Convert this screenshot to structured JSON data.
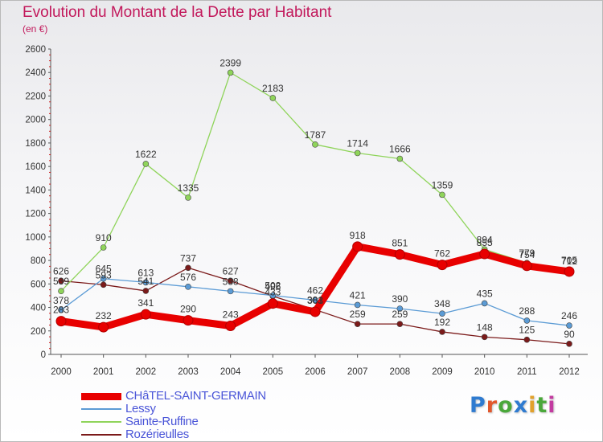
{
  "header": {
    "title": "Evolution du Montant de la Dette par Habitant",
    "subtitle": "(en €)"
  },
  "brand": {
    "text": "Proxiti",
    "colors": [
      "#2f7bd0",
      "#e2572b",
      "#4aa83a",
      "#2f7bd0",
      "#e2a12b",
      "#4aa83a",
      "#c33ba0"
    ]
  },
  "chart_data": {
    "type": "line",
    "title": "Evolution du Montant de la Dette par Habitant",
    "subtitle": "(en €)",
    "x": [
      "2000",
      "2001",
      "2002",
      "2003",
      "2004",
      "2005",
      "2006",
      "2007",
      "2008",
      "2009",
      "2010",
      "2011",
      "2012"
    ],
    "ylim": [
      0,
      2600
    ],
    "yticks": [
      0,
      200,
      400,
      600,
      800,
      1000,
      1200,
      1400,
      1600,
      1800,
      2000,
      2200,
      2400,
      2600
    ],
    "grid": false,
    "legend_position": "bottom-left",
    "series": [
      {
        "name": "CHâTEL-SAINT-GERMAIN",
        "color": "#e80000",
        "values": [
          283,
          232,
          341,
          290,
          243,
          433,
          363,
          918,
          851,
          762,
          855,
          754,
          705
        ],
        "labels": [
          "283",
          "232",
          "341",
          "290",
          "243",
          "433",
          "363",
          "918",
          "851",
          "762",
          "855",
          "754",
          "705"
        ]
      },
      {
        "name": "Lessy",
        "color": "#5b9bd5",
        "values": [
          378,
          645,
          613,
          576,
          538,
          502,
          462,
          421,
          390,
          348,
          435,
          288,
          246
        ],
        "labels": [
          "378",
          "645",
          "613",
          "576",
          "538",
          "502",
          "462",
          "421",
          "390",
          "348",
          "435",
          "288",
          "246"
        ]
      },
      {
        "name": "Sainte-Ruffine",
        "color": "#8fd45a",
        "values": [
          539,
          910,
          1622,
          1335,
          2399,
          2183,
          1787,
          1714,
          1666,
          1359,
          894,
          779,
          712
        ],
        "labels": [
          "539",
          "910",
          "1622",
          "1335",
          "2399",
          "2183",
          "1787",
          "1714",
          "1666",
          "1359",
          "894",
          "779",
          "712"
        ]
      },
      {
        "name": "Rozérieulles",
        "color": "#7b1a1a",
        "values": [
          626,
          593,
          541,
          737,
          627,
          496,
          381,
          259,
          259,
          192,
          148,
          125,
          90
        ],
        "labels": [
          "626",
          "593",
          "541",
          "737",
          "627",
          "496",
          "381",
          "259",
          "259",
          "192",
          "148",
          "125",
          "90"
        ]
      }
    ]
  }
}
